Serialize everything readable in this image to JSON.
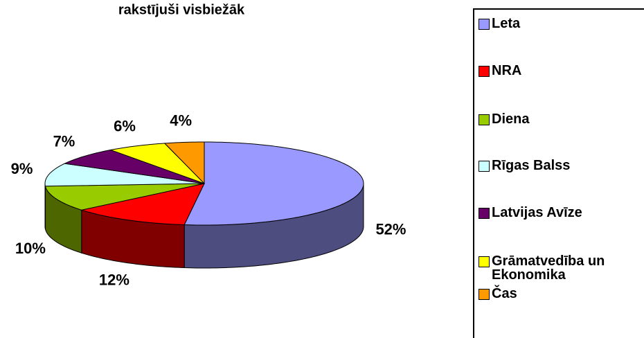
{
  "chart_data": {
    "type": "pie3d",
    "title": "rakstījuši visbiežāk",
    "categories": [
      "Leta",
      "NRA",
      "Diena",
      "Rīgas Balss",
      "Latvijas Avīze",
      "Grāmatvedība un Ekonomika",
      "Čas"
    ],
    "values": [
      52,
      12,
      10,
      9,
      7,
      6,
      4
    ],
    "value_labels": [
      "52%",
      "12%",
      "10%",
      "9%",
      "7%",
      "6%",
      "4%"
    ],
    "colors": [
      "#9999ff",
      "#ff0000",
      "#99cc00",
      "#ccffff",
      "#660066",
      "#ffff00",
      "#ff9900"
    ],
    "legend": "right"
  }
}
